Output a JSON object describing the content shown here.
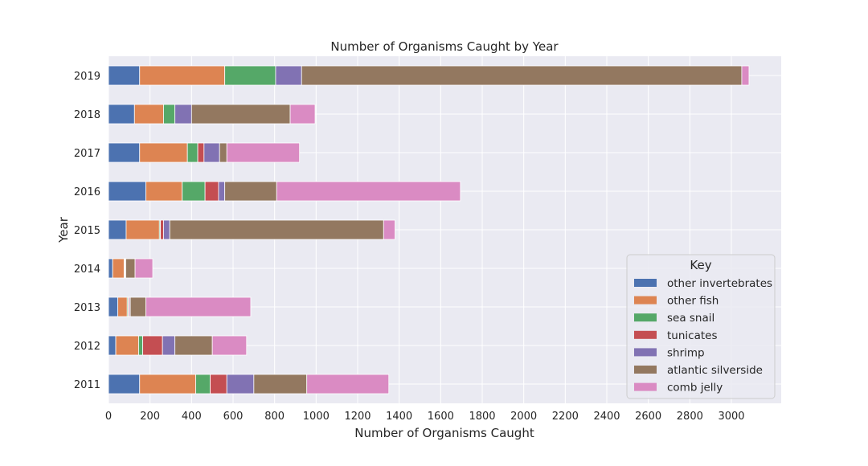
{
  "chart_data": {
    "type": "bar",
    "orientation": "horizontal",
    "stacked": true,
    "title": "Number of Organisms Caught by Year",
    "xlabel": "Number of Organisms Caught",
    "ylabel": "Year",
    "xlim": [
      0,
      3240
    ],
    "xticks": [
      0,
      200,
      400,
      600,
      800,
      1000,
      1200,
      1400,
      1600,
      1800,
      2000,
      2200,
      2400,
      2600,
      2800,
      3000
    ],
    "categories": [
      "2011",
      "2012",
      "2013",
      "2014",
      "2015",
      "2016",
      "2017",
      "2018",
      "2019"
    ],
    "grid": true,
    "legend": {
      "title": "Key",
      "placement": "lower right"
    },
    "series": [
      {
        "name": "other invertebrates",
        "color": "#4c72b0",
        "values": [
          150,
          35,
          45,
          20,
          85,
          180,
          150,
          125,
          150
        ]
      },
      {
        "name": "other fish",
        "color": "#dd8452",
        "values": [
          270,
          110,
          45,
          55,
          160,
          175,
          230,
          140,
          410
        ]
      },
      {
        "name": "sea snail",
        "color": "#55a868",
        "values": [
          70,
          20,
          5,
          3,
          5,
          110,
          50,
          55,
          245
        ]
      },
      {
        "name": "tunicates",
        "color": "#c44e52",
        "values": [
          80,
          95,
          5,
          2,
          15,
          65,
          30,
          0,
          0
        ]
      },
      {
        "name": "shrimp",
        "color": "#8172b3",
        "values": [
          130,
          60,
          5,
          3,
          30,
          30,
          75,
          80,
          125
        ]
      },
      {
        "name": "atlantic silverside",
        "color": "#937860",
        "values": [
          255,
          180,
          75,
          45,
          1030,
          250,
          35,
          475,
          2120
        ]
      },
      {
        "name": "comb jelly",
        "color": "#da8bc3",
        "values": [
          395,
          165,
          505,
          85,
          55,
          885,
          350,
          120,
          35
        ]
      }
    ]
  }
}
